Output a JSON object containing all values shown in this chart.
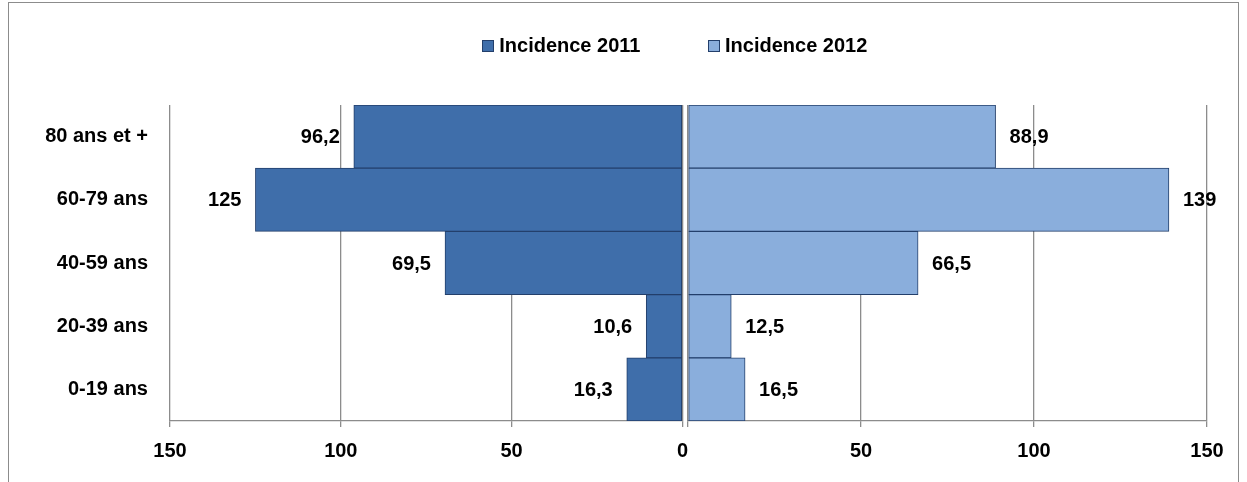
{
  "chart_data": [
    {
      "type": "bar",
      "orientation": "horizontal",
      "categories": [
        "80 ans et +",
        "60-79 ans",
        "40-59 ans",
        "20-39 ans",
        "0-19 ans"
      ],
      "series": [
        {
          "name": "Incidence 2011",
          "color": "#3f6eaa",
          "values": [
            96.2,
            125,
            69.5,
            10.6,
            16.3
          ],
          "value_labels": [
            "96,2",
            "125",
            "69,5",
            "10,6",
            "16,3"
          ]
        }
      ],
      "xlim": [
        150,
        0
      ],
      "xticks": [
        150,
        100,
        50,
        0
      ],
      "grid": "x",
      "legend": "top right"
    },
    {
      "type": "bar",
      "orientation": "horizontal",
      "categories": [
        null,
        null,
        null,
        null,
        null
      ],
      "series": [
        {
          "name": "Incidence 2012",
          "color": "#8aaedc",
          "values": [
            88.9,
            139,
            66.5,
            12.5,
            16.5
          ],
          "value_labels": [
            "88,9",
            "139",
            "66,5",
            "12,5",
            "16,5"
          ]
        }
      ],
      "xlim": [
        0,
        150
      ],
      "xticks": [
        {
          "value": 0,
          "label": null
        },
        50,
        100,
        150
      ],
      "grid": "x",
      "legend": "top left",
      "tick_labels": "x"
    }
  ]
}
